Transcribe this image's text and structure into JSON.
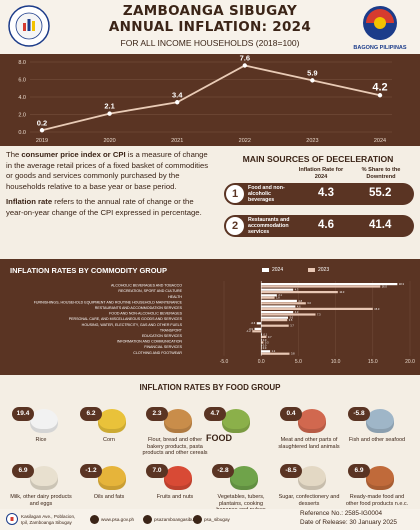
{
  "header": {
    "title_line1": "ZAMBOANGA SIBUGAY",
    "title_line2": "ANNUAL INFLATION: 2024",
    "subtitle": "FOR ALL INCOME HOUSEHOLDS (2018=100)",
    "right_logo_label": "BAGONG PILIPINAS",
    "left_logo_text": "PHILIPPINE STATISTICS AUTHORITY"
  },
  "chart_data": [
    {
      "type": "line",
      "x": [
        "2019",
        "2020",
        "2021",
        "2022",
        "2023",
        "2024"
      ],
      "y": [
        0.2,
        2.1,
        3.4,
        7.6,
        5.9,
        4.2
      ],
      "ylim": [
        0.0,
        8.0
      ],
      "yticks": [
        "0.0",
        "2.0",
        "4.0",
        "6.0",
        "8.0"
      ],
      "data_labels": [
        "0.2",
        "2.1",
        "3.4",
        "7.6",
        "5.9",
        "4.2"
      ],
      "grid": true
    },
    {
      "type": "bar",
      "title": "INFLATION RATES BY COMMODITY GROUP",
      "categories": [
        "ALCOHOLIC BEVERAGES AND TOBACCO",
        "RECREATION, SPORT AND CULTURE",
        "HEALTH",
        "FURNISHINGS, HOUSEHOLD EQUIPMENT AND ROUTINE HOUSEHOLD MAINTENANCE",
        "RESTAURANTS AND ACCOMMODATION SERVICES",
        "FOOD AND NON-ALCOHOLIC BEVERAGES",
        "PERSONAL CARE, AND MISCELLANEOUS GOODS AND SERVICES",
        "HOUSING, WATER, ELECTRICITY, GAS AND OTHER FUELS",
        "TRANSPORT",
        "EDUCATION SERVICES",
        "INFORMATION AND COMMUNICATION",
        "FINANCIAL SERVICES",
        "CLOTHING AND FOOTWEAR"
      ],
      "series": [
        {
          "name": "2024",
          "values": [
            18.3,
            4.3,
            2.1,
            4.8,
            4.6,
            4.3,
            3.6,
            -0.6,
            -0.9,
            0.1,
            0.0,
            0.0,
            1.2
          ]
        },
        {
          "name": "2023",
          "values": [
            16.0,
            10.3,
            1.8,
            6.0,
            15.0,
            7.3,
            3.5,
            3.7,
            -1.2,
            0.7,
            0.3,
            0.0,
            3.8
          ]
        }
      ],
      "xlim": [
        -5.0,
        20.0
      ],
      "xticks": [
        "-5.0",
        "0.0",
        "5.0",
        "10.0",
        "15.0",
        "20.0"
      ]
    }
  ],
  "definitions": {
    "cpi_term": "consumer price index or CPI",
    "cpi_pre": "The ",
    "cpi_post": " is a measure of change in the average retail prices of a fixed basket of commodities or goods and services commonly purchased by the households relative to a base year or base period.",
    "infl_term": "Inflation rate",
    "infl_post": " refers to the annual rate of change or the year-on-year change of the CPI expressed in percentage."
  },
  "deceleration": {
    "title": "MAIN SOURCES OF DECELERATION",
    "col1": "Inflation Rate for 2024",
    "col2": "% Share to the Downtrend",
    "rows": [
      {
        "num": "1",
        "label": "Food and non-alcoholic beverages",
        "rate": "4.3",
        "share": "55.2"
      },
      {
        "num": "2",
        "label": "Restaurants and accommodation services",
        "rate": "4.6",
        "share": "41.4"
      }
    ]
  },
  "food": {
    "title": "INFLATION RATES BY FOOD GROUP",
    "center_label": "FOOD",
    "items": [
      {
        "value": "19.4",
        "label": "Rice",
        "icon": "rice-icon",
        "color": "#f2f2f2"
      },
      {
        "value": "6.2",
        "label": "Corn",
        "icon": "corn-icon",
        "color": "#e9c23a"
      },
      {
        "value": "2.3",
        "label": "Flour, bread and other bakery products, pasta products and other cereals",
        "icon": "bread-icon",
        "color": "#c98d4a"
      },
      {
        "value": "4.7",
        "label": "",
        "icon": "vegetables-icon",
        "color": "#8bb04a"
      },
      {
        "value": "0.4",
        "label": "Meat and other parts of slaughtered land animals",
        "icon": "meat-icon",
        "color": "#d1684f"
      },
      {
        "value": "-5.8",
        "label": "Fish and other seafood",
        "icon": "fish-icon",
        "color": "#9fb6c8"
      },
      {
        "value": "6.9",
        "label": "Milk, other dairy products and eggs",
        "icon": "milk-icon",
        "color": "#e8e0cf"
      },
      {
        "value": "-1.2",
        "label": "Oils and fats",
        "icon": "oil-icon",
        "color": "#e6b43a"
      },
      {
        "value": "7.0",
        "label": "Fruits and nuts",
        "icon": "fruit-icon",
        "color": "#d84a35"
      },
      {
        "value": "-2.8",
        "label": "Vegetables, tubers, plantains, cooking bananas and pulses",
        "icon": "veg-icon",
        "color": "#6fa34a"
      },
      {
        "value": "-8.5",
        "label": "Sugar, confectionery and desserts",
        "icon": "sugar-icon",
        "color": "#e3d8c4"
      },
      {
        "value": "6.9",
        "label": "Ready-made food and other food products n.e.c.",
        "icon": "readymade-icon",
        "color": "#c06a3a"
      }
    ]
  },
  "footer": {
    "address": "Kasilagan Ave., Poblacion, Ipil, Zamboanga Sibugay",
    "website": "www.psa.gov.ph",
    "facebook": "psazamboangasibugay",
    "x_handle": "psa_sibugay",
    "reference": "Reference No.: 2585-IG0004",
    "release": "Date of Release: 30 January 2025"
  },
  "colors": {
    "brown": "#5a3423",
    "cream": "#f4eee4",
    "bar2024": "#ffffff",
    "bar2023": "#e8c7b4"
  }
}
